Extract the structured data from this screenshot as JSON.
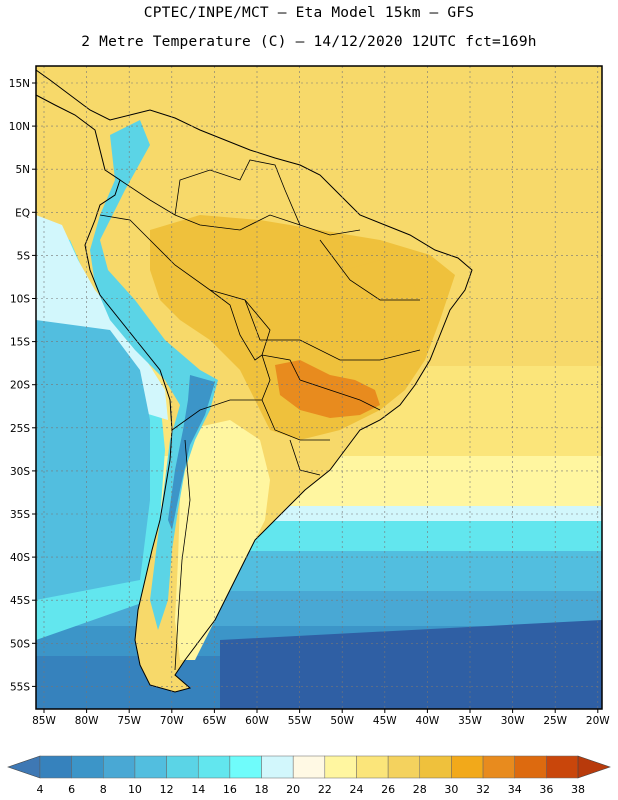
{
  "title": {
    "line1": "CPTEC/INPE/MCT –  Eta Model 15km – GFS",
    "line2": "2 Metre Temperature (C) – 14/12/2020 12UTC fct=169h"
  },
  "axes": {
    "lat_labels": [
      "15N",
      "10N",
      "5N",
      "EQ",
      "5S",
      "10S",
      "15S",
      "20S",
      "25S",
      "30S",
      "35S",
      "40S",
      "45S",
      "50S",
      "55S"
    ],
    "lon_labels": [
      "85W",
      "80W",
      "75W",
      "70W",
      "65W",
      "60W",
      "55W",
      "50W",
      "45W",
      "40W",
      "35W",
      "30W",
      "25W",
      "20W"
    ]
  },
  "colorbar": {
    "labels": [
      "4",
      "6",
      "8",
      "10",
      "12",
      "14",
      "16",
      "18",
      "20",
      "22",
      "24",
      "26",
      "28",
      "30",
      "32",
      "34",
      "36",
      "38"
    ],
    "colors": [
      "#3e78b4",
      "#3682bd",
      "#3c95c8",
      "#49a8d4",
      "#52bedf",
      "#5bd4e6",
      "#62e6ee",
      "#6ffcfb",
      "#d2f7fc",
      "#fff9e4",
      "#fff6a0",
      "#fbe57a",
      "#f4d25e",
      "#efc13c",
      "#f2a91a",
      "#e88b1e",
      "#dd6a0f",
      "#c9460b",
      "#b83a0b"
    ]
  },
  "map": {
    "ocean_colors": {
      "tropical": "#f7d96a",
      "warm": "#fbe57a",
      "mild": "#fff6a0",
      "cool": "#d2f7fc",
      "cold1": "#62e6ee",
      "cold2": "#52bedf",
      "cold3": "#49a8d4",
      "cold4": "#3c95c8",
      "cold5": "#3682bd",
      "cold6": "#2f5fa4"
    },
    "land_colors": {
      "hot": "#efc13c",
      "hotter": "#e88b1e",
      "andes": "#5bd4e6",
      "andes_high": "#3c95c8",
      "patagonia": "#fff6a0"
    }
  }
}
